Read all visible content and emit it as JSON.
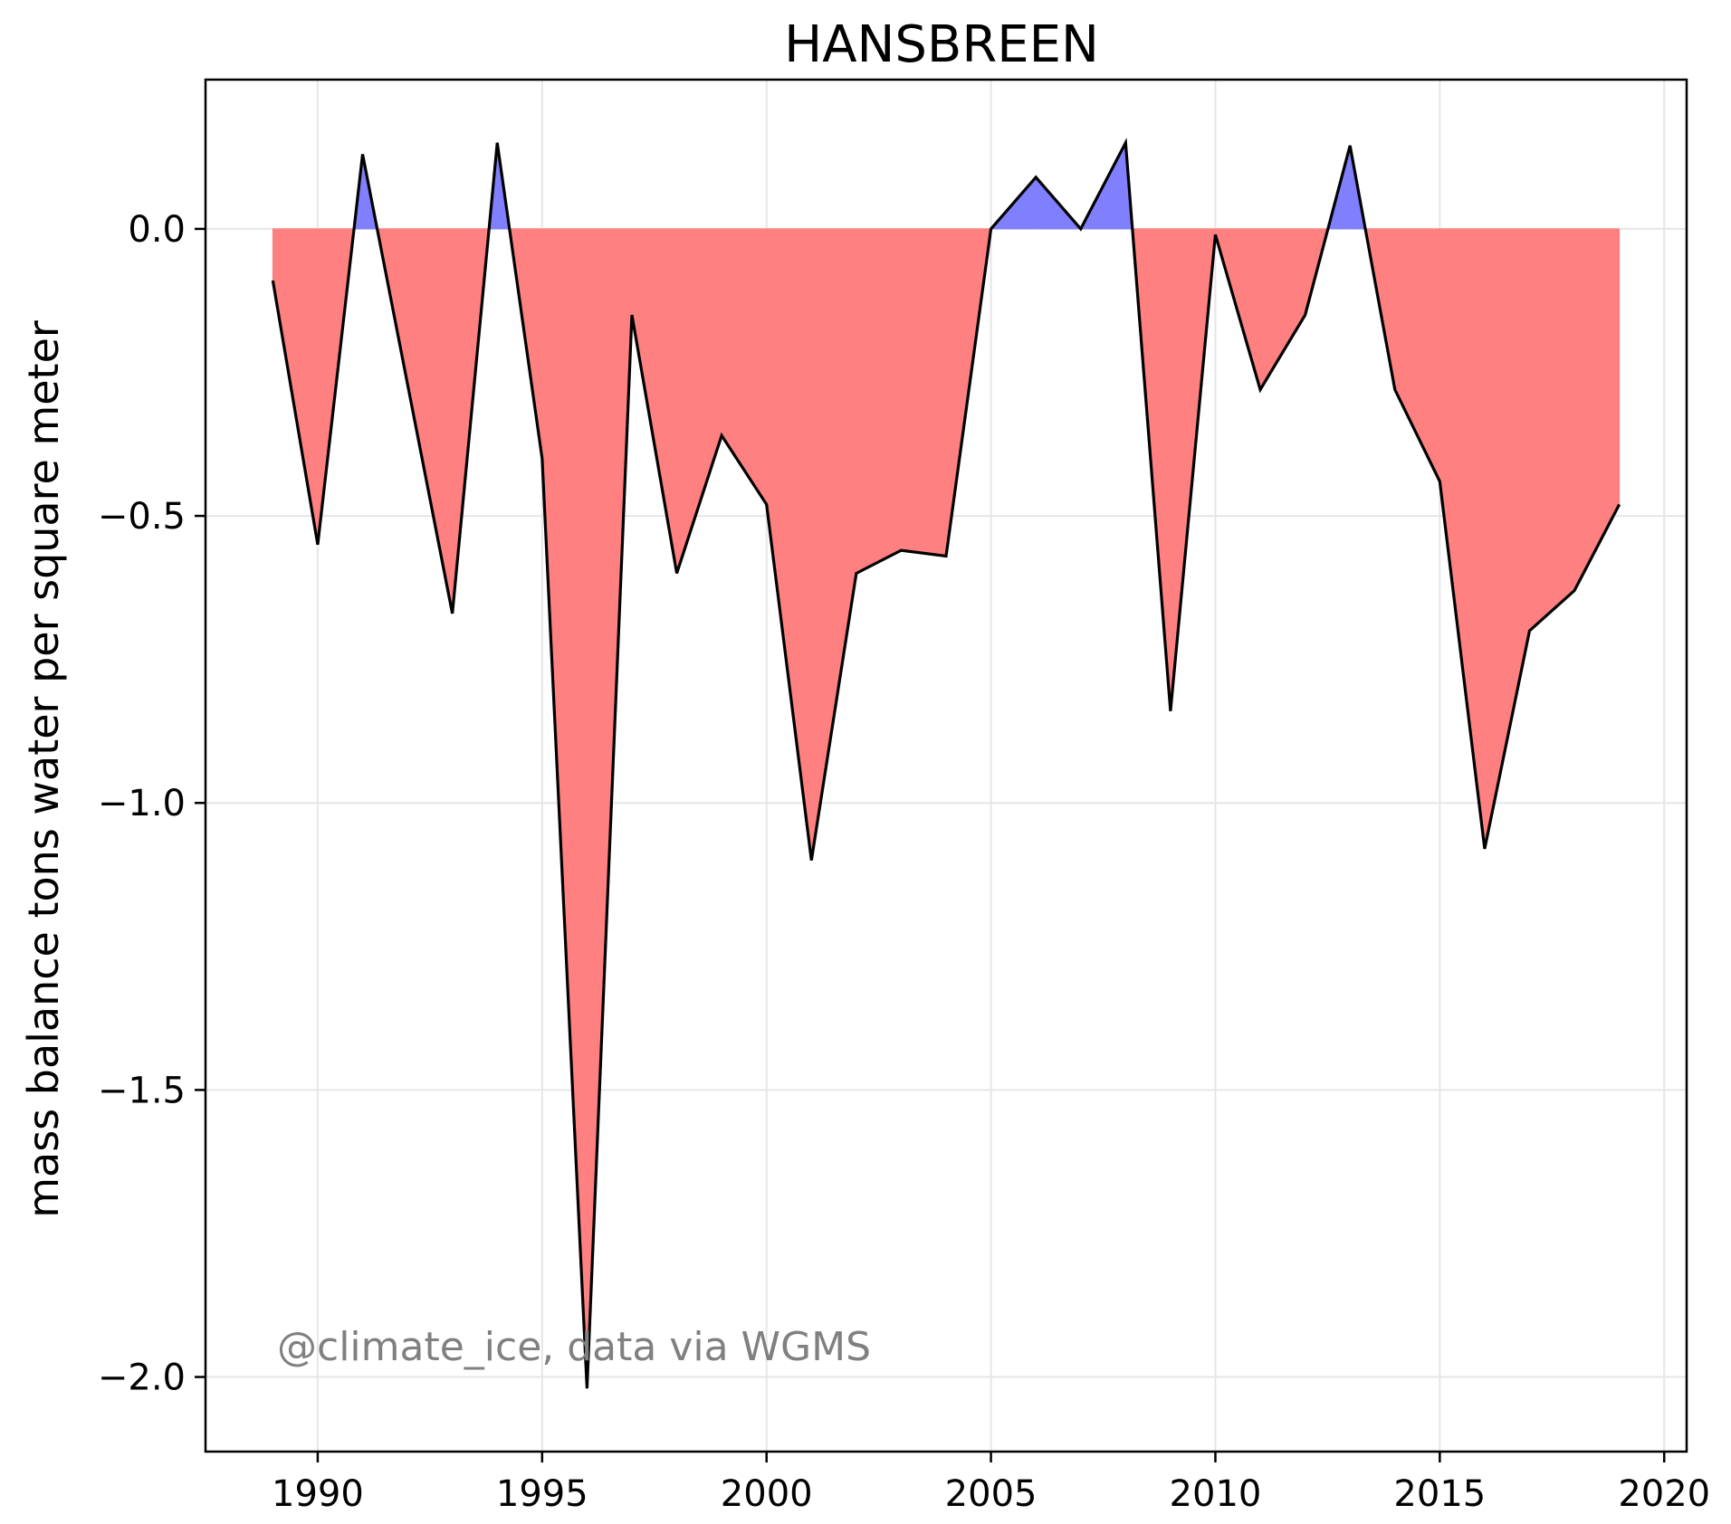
{
  "chart_data": {
    "type": "area",
    "title": "HANSBREEN",
    "xlabel": "",
    "ylabel": "mass balance tons water per square meter",
    "annotation": "@climate_ice, data via WGMS",
    "xlim": [
      1987.5,
      2020.5
    ],
    "ylim": [
      -2.13,
      0.26
    ],
    "xticks": [
      1990,
      1995,
      2000,
      2005,
      2010,
      2015,
      2020
    ],
    "yticks": [
      0.0,
      -0.5,
      -1.0,
      -1.5,
      -2.0
    ],
    "ytick_labels": [
      "0.0",
      "−0.5",
      "−1.0",
      "−1.5",
      "−2.0"
    ],
    "grid": true,
    "colors": {
      "positive": "#8080ff",
      "negative": "#ff8080",
      "line": "#000000"
    },
    "x": [
      1989,
      1990,
      1991,
      1992,
      1993,
      1994,
      1995,
      1996,
      1997,
      1998,
      1999,
      2000,
      2001,
      2002,
      2003,
      2004,
      2005,
      2006,
      2007,
      2008,
      2009,
      2010,
      2011,
      2012,
      2013,
      2014,
      2015,
      2016,
      2017,
      2018,
      2019
    ],
    "series": [
      {
        "values": [
          -0.09,
          -0.55,
          0.13,
          -0.27,
          -0.67,
          0.15,
          -0.4,
          -2.02,
          -0.15,
          -0.6,
          -0.36,
          -0.48,
          -1.1,
          -0.6,
          -0.56,
          -0.57,
          0.0,
          0.09,
          0.0,
          0.15,
          -0.84,
          -0.01,
          -0.28,
          -0.15,
          0.145,
          -0.28,
          -0.44,
          -1.08,
          -0.7,
          -0.63,
          -0.48
        ]
      }
    ]
  }
}
